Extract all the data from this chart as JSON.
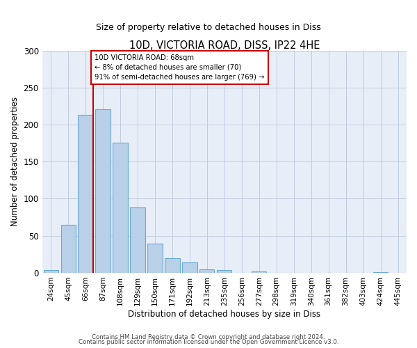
{
  "title": "10D, VICTORIA ROAD, DISS, IP22 4HE",
  "subtitle": "Size of property relative to detached houses in Diss",
  "xlabel": "Distribution of detached houses by size in Diss",
  "ylabel": "Number of detached properties",
  "bin_labels": [
    "24sqm",
    "45sqm",
    "66sqm",
    "87sqm",
    "108sqm",
    "129sqm",
    "150sqm",
    "171sqm",
    "192sqm",
    "213sqm",
    "235sqm",
    "256sqm",
    "277sqm",
    "298sqm",
    "319sqm",
    "340sqm",
    "361sqm",
    "382sqm",
    "403sqm",
    "424sqm",
    "445sqm"
  ],
  "bar_values": [
    4,
    65,
    213,
    221,
    176,
    88,
    39,
    20,
    14,
    5,
    4,
    0,
    2,
    0,
    0,
    0,
    0,
    0,
    0,
    1,
    0
  ],
  "bar_color": "#b8d0e8",
  "bar_edge_color": "#6aaad4",
  "vline_x_index": 2,
  "vline_color": "#cc0000",
  "annotation_text": "10D VICTORIA ROAD: 68sqm\n← 8% of detached houses are smaller (70)\n91% of semi-detached houses are larger (769) →",
  "annotation_box_color": "#ffffff",
  "annotation_box_edge_color": "#cc0000",
  "ylim": [
    0,
    300
  ],
  "yticks": [
    0,
    50,
    100,
    150,
    200,
    250,
    300
  ],
  "footer_line1": "Contains HM Land Registry data © Crown copyright and database right 2024.",
  "footer_line2": "Contains public sector information licensed under the Open Government Licence v3.0.",
  "axes_bg_color": "#e8eef8",
  "fig_bg_color": "#ffffff"
}
